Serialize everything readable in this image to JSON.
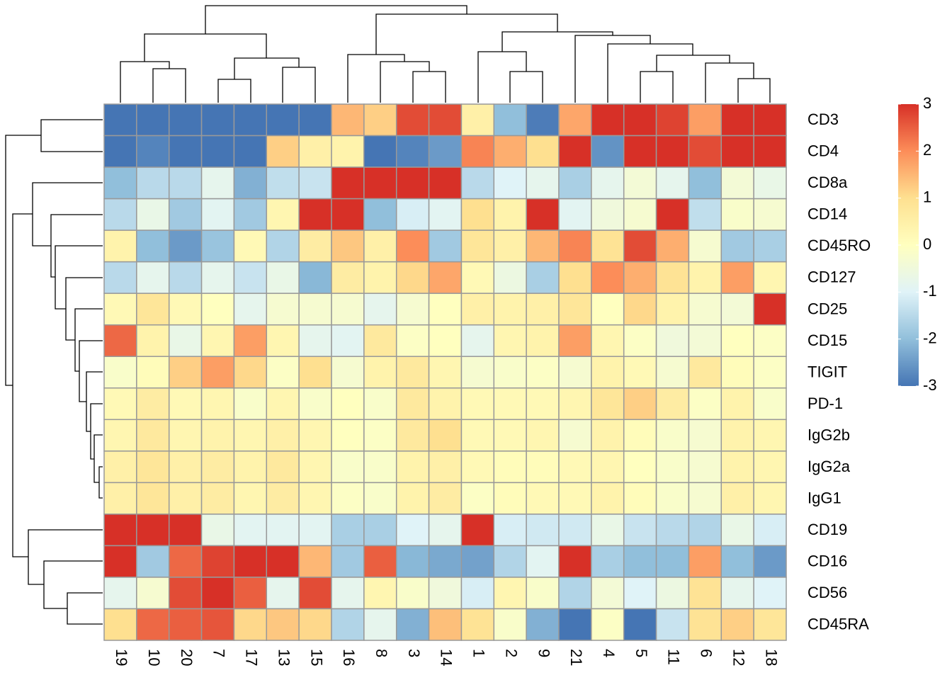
{
  "chart_data": {
    "type": "heatmap",
    "rows": [
      "CD3",
      "CD4",
      "CD8a",
      "CD14",
      "CD45RO",
      "CD127",
      "CD25",
      "CD15",
      "TIGIT",
      "PD-1",
      "IgG2b",
      "IgG2a",
      "IgG1",
      "CD19",
      "CD16",
      "CD56",
      "CD45RA"
    ],
    "columns": [
      "19",
      "10",
      "20",
      "7",
      "17",
      "13",
      "15",
      "16",
      "8",
      "3",
      "14",
      "1",
      "2",
      "9",
      "21",
      "4",
      "5",
      "11",
      "6",
      "12",
      "18"
    ],
    "values": [
      [
        -3,
        -3,
        -3,
        -3,
        -3,
        -3,
        -3,
        1.5,
        1.2,
        2.7,
        2.7,
        0.5,
        -2,
        -2.9,
        1.7,
        3,
        3,
        2.8,
        1.8,
        3,
        3
      ],
      [
        -3,
        -2.8,
        -3,
        -3,
        -3,
        1.2,
        0.5,
        0.4,
        -3,
        -2.8,
        -2.5,
        2.1,
        1.6,
        1,
        3,
        -2.6,
        3,
        3,
        2.7,
        3,
        3
      ],
      [
        -2,
        -1.5,
        -1.5,
        -0.8,
        -2.2,
        -1.4,
        -1.3,
        3,
        3,
        3,
        3,
        -1.5,
        -1,
        -0.8,
        -1.7,
        -0.8,
        -0.4,
        -0.8,
        -2,
        -0.4,
        -0.7
      ],
      [
        -1.5,
        -0.7,
        -1.8,
        -0.9,
        -1.8,
        0.3,
        3,
        3,
        -2,
        -1.1,
        -0.9,
        1,
        0.4,
        3,
        -0.9,
        -0.5,
        -0.3,
        3,
        -1.4,
        -0.2,
        -0.3
      ],
      [
        0.4,
        -2,
        -2.5,
        -1.9,
        0.2,
        -1.6,
        0.6,
        1.3,
        0.5,
        2,
        -1.8,
        0.8,
        0.5,
        1.5,
        2.1,
        0.9,
        2.7,
        1.6,
        -0.3,
        -1.8,
        -1.7
      ],
      [
        -1.5,
        -0.8,
        -1.5,
        -0.8,
        -1.3,
        -0.7,
        -2.1,
        0.6,
        0.4,
        1.1,
        1.7,
        0.2,
        -0.6,
        -1.7,
        1,
        2,
        1.6,
        0.9,
        0.4,
        1.8,
        0.3
      ],
      [
        0.2,
        0.8,
        0.2,
        0,
        -0.8,
        -0.3,
        -0.3,
        -0.3,
        -0.8,
        -0.3,
        0,
        0.5,
        0.4,
        0.5,
        0.8,
        0,
        1.1,
        0.4,
        -0.3,
        -0.4,
        3
      ],
      [
        2.4,
        0.4,
        -0.7,
        0.3,
        1.8,
        0.3,
        -0.8,
        -0.9,
        0.7,
        -0.1,
        0,
        -0.8,
        0.3,
        0.4,
        1.8,
        0.3,
        -0.1,
        -0.5,
        -0.4,
        0,
        -0.1
      ],
      [
        -0.2,
        0.1,
        1.2,
        1.8,
        1.1,
        -0.1,
        1,
        -0.3,
        0.4,
        0.7,
        0.3,
        -0.3,
        -0.2,
        -0.1,
        -0.3,
        0.4,
        0.2,
        -0.3,
        0.7,
        0.1,
        -0.1
      ],
      [
        0.2,
        0.6,
        0.2,
        0.3,
        -0.2,
        0.3,
        -0.2,
        0,
        -0.2,
        0.7,
        0.4,
        0.2,
        0.2,
        0.2,
        0.3,
        0.8,
        1.2,
        0.6,
        -0.1,
        0.4,
        -0.2
      ],
      [
        0.3,
        0.7,
        0.3,
        0.4,
        0.3,
        0.5,
        0.3,
        0,
        -0.1,
        0.7,
        1,
        0.2,
        0.2,
        0.3,
        -0.3,
        0.4,
        0.1,
        -0.2,
        -0.3,
        0.4,
        0.3
      ],
      [
        0.5,
        0.8,
        0.5,
        0.6,
        0.4,
        0.7,
        0.3,
        -0.2,
        -0.2,
        0.4,
        0.5,
        0.2,
        0.1,
        0.1,
        0.2,
        0.3,
        0,
        -0.2,
        -0.3,
        0.4,
        0.3
      ],
      [
        0.5,
        0.8,
        0.5,
        0.6,
        0.3,
        0.6,
        0.3,
        -0.1,
        -0.2,
        0.4,
        0.6,
        -0.1,
        0.1,
        0.2,
        0.2,
        0.4,
        0.1,
        -0.2,
        -0.3,
        0.5,
        0.3
      ],
      [
        3,
        3,
        3,
        -0.7,
        -0.9,
        -0.9,
        -0.9,
        -1.7,
        -1.7,
        -1,
        -0.8,
        3,
        -1.1,
        -1.2,
        -1.2,
        -0.7,
        -1.3,
        -1.5,
        -1.6,
        -0.7,
        -1.1
      ],
      [
        3,
        -1.8,
        2.4,
        2.8,
        3,
        3,
        1.5,
        -1.8,
        2.5,
        -2.1,
        -2.3,
        -2.4,
        -1.6,
        -0.9,
        3,
        -1.7,
        -2,
        -2,
        1.8,
        -2,
        -2.5
      ],
      [
        -0.8,
        -0.3,
        2.7,
        3,
        2.5,
        -0.8,
        2.7,
        -0.8,
        0.3,
        -0.2,
        -0.5,
        -1.1,
        0.3,
        -0.2,
        -1.6,
        -0.4,
        -1,
        -0.6,
        0.9,
        -0.8,
        -1
      ],
      [
        1,
        2.4,
        2.5,
        2.6,
        1.1,
        1.3,
        1.1,
        -1.6,
        -0.8,
        -2.2,
        1.4,
        0.9,
        -0.2,
        -2.2,
        -3,
        -0.1,
        -3,
        -1.3,
        0.9,
        1.2,
        0.8
      ]
    ],
    "colors": [
      "#4575B4",
      "#91BFDB",
      "#E0F3F8",
      "#FFFFBF",
      "#FEE090",
      "#FC8D59",
      "#D73027"
    ],
    "colorbar_lim": [
      -3,
      3
    ],
    "colorbar_ticks": [
      3,
      2,
      1,
      0,
      -1,
      -2,
      -3
    ]
  }
}
